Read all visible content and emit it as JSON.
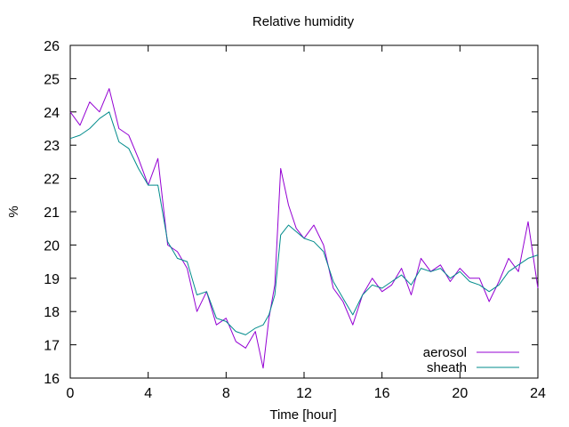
{
  "chart_data": {
    "type": "line",
    "title": "Relative humidity",
    "xlabel": "Time [hour]",
    "ylabel": "%",
    "xlim": [
      0,
      24
    ],
    "ylim": [
      16,
      26
    ],
    "xticks": [
      "0",
      "4",
      "8",
      "12",
      "16",
      "20",
      "24"
    ],
    "yticks": [
      "16",
      "17",
      "18",
      "19",
      "20",
      "21",
      "22",
      "23",
      "24",
      "25",
      "26"
    ],
    "grid": false,
    "legend_position": "bottom-right",
    "series": [
      {
        "name": "aerosol",
        "color": "#9400d3",
        "x": [
          0.0,
          0.5,
          1.0,
          1.5,
          2.0,
          2.5,
          3.0,
          3.5,
          4.0,
          4.5,
          5.0,
          5.5,
          6.0,
          6.5,
          7.0,
          7.5,
          8.0,
          8.5,
          9.0,
          9.5,
          9.9,
          10.2,
          10.5,
          10.8,
          11.2,
          11.6,
          12.0,
          12.5,
          13.0,
          13.5,
          14.0,
          14.5,
          15.0,
          15.5,
          16.0,
          16.5,
          17.0,
          17.5,
          18.0,
          18.5,
          19.0,
          19.5,
          20.0,
          20.5,
          21.0,
          21.5,
          22.0,
          22.5,
          23.0,
          23.5,
          24.0
        ],
        "y": [
          24.0,
          23.6,
          24.3,
          24.0,
          24.7,
          23.5,
          23.3,
          22.6,
          21.8,
          22.6,
          20.0,
          19.8,
          19.3,
          18.0,
          18.6,
          17.6,
          17.8,
          17.1,
          16.9,
          17.4,
          16.3,
          17.8,
          18.8,
          22.3,
          21.2,
          20.5,
          20.2,
          20.6,
          20.0,
          18.7,
          18.3,
          17.6,
          18.5,
          19.0,
          18.6,
          18.8,
          19.3,
          18.5,
          19.6,
          19.2,
          19.4,
          18.9,
          19.3,
          19.0,
          19.0,
          18.3,
          18.9,
          19.6,
          19.2,
          20.7,
          18.7
        ]
      },
      {
        "name": "sheath",
        "color": "#008b8b",
        "x": [
          0.0,
          0.5,
          1.0,
          1.5,
          2.0,
          2.5,
          3.0,
          3.5,
          4.0,
          4.5,
          5.0,
          5.5,
          6.0,
          6.5,
          7.0,
          7.5,
          8.0,
          8.5,
          9.0,
          9.5,
          9.9,
          10.2,
          10.5,
          10.8,
          11.2,
          11.6,
          12.0,
          12.5,
          13.0,
          13.5,
          14.0,
          14.5,
          15.0,
          15.5,
          16.0,
          16.5,
          17.0,
          17.5,
          18.0,
          18.5,
          19.0,
          19.5,
          20.0,
          20.5,
          21.0,
          21.5,
          22.0,
          22.5,
          23.0,
          23.5,
          24.0
        ],
        "y": [
          23.2,
          23.3,
          23.5,
          23.8,
          24.0,
          23.1,
          22.9,
          22.3,
          21.8,
          21.8,
          20.1,
          19.6,
          19.5,
          18.5,
          18.6,
          17.8,
          17.7,
          17.4,
          17.3,
          17.5,
          17.6,
          17.9,
          18.5,
          20.3,
          20.6,
          20.4,
          20.2,
          20.1,
          19.8,
          18.9,
          18.4,
          17.9,
          18.5,
          18.8,
          18.7,
          18.9,
          19.1,
          18.8,
          19.3,
          19.2,
          19.3,
          19.0,
          19.2,
          18.9,
          18.8,
          18.6,
          18.8,
          19.2,
          19.4,
          19.6,
          19.7
        ]
      }
    ]
  }
}
